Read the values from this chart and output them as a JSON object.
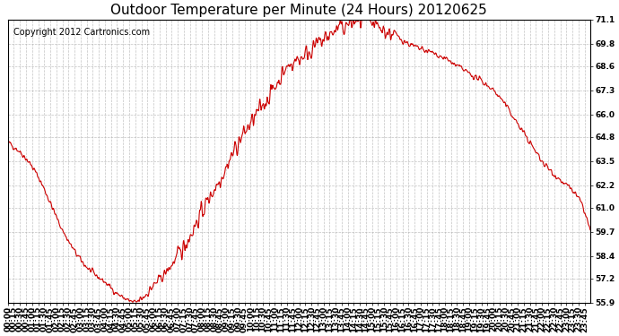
{
  "title": "Outdoor Temperature per Minute (24 Hours) 20120625",
  "copyright_text": "Copyright 2012 Cartronics.com",
  "line_color": "#cc0000",
  "background_color": "#ffffff",
  "grid_color": "#aaaaaa",
  "yticks": [
    55.9,
    57.2,
    58.4,
    59.7,
    61.0,
    62.2,
    63.5,
    64.8,
    66.0,
    67.3,
    68.6,
    69.8,
    71.1
  ],
  "ymin": 55.9,
  "ymax": 71.1,
  "xmin": 0,
  "xmax": 1439,
  "title_fontsize": 11,
  "copyright_fontsize": 7,
  "tick_fontsize": 6.5,
  "control_x": [
    0,
    30,
    60,
    90,
    120,
    150,
    180,
    210,
    240,
    270,
    300,
    315,
    330,
    360,
    390,
    420,
    450,
    480,
    510,
    540,
    570,
    600,
    630,
    660,
    690,
    720,
    750,
    780,
    810,
    840,
    870,
    900,
    930,
    960,
    990,
    1020,
    1050,
    1080,
    1110,
    1140,
    1170,
    1200,
    1230,
    1260,
    1290,
    1320,
    1350,
    1380,
    1410,
    1439
  ],
  "control_y": [
    64.5,
    64.0,
    63.2,
    62.0,
    60.5,
    59.2,
    58.2,
    57.5,
    57.0,
    56.4,
    56.0,
    55.9,
    56.1,
    56.8,
    57.5,
    58.4,
    59.5,
    60.8,
    62.0,
    63.2,
    64.5,
    65.5,
    66.5,
    67.5,
    68.5,
    69.0,
    69.5,
    70.0,
    70.5,
    70.8,
    71.0,
    70.8,
    70.5,
    70.2,
    69.8,
    69.5,
    69.3,
    69.0,
    68.6,
    68.2,
    67.8,
    67.3,
    66.5,
    65.5,
    64.5,
    63.5,
    62.8,
    62.2,
    61.5,
    59.7
  ]
}
